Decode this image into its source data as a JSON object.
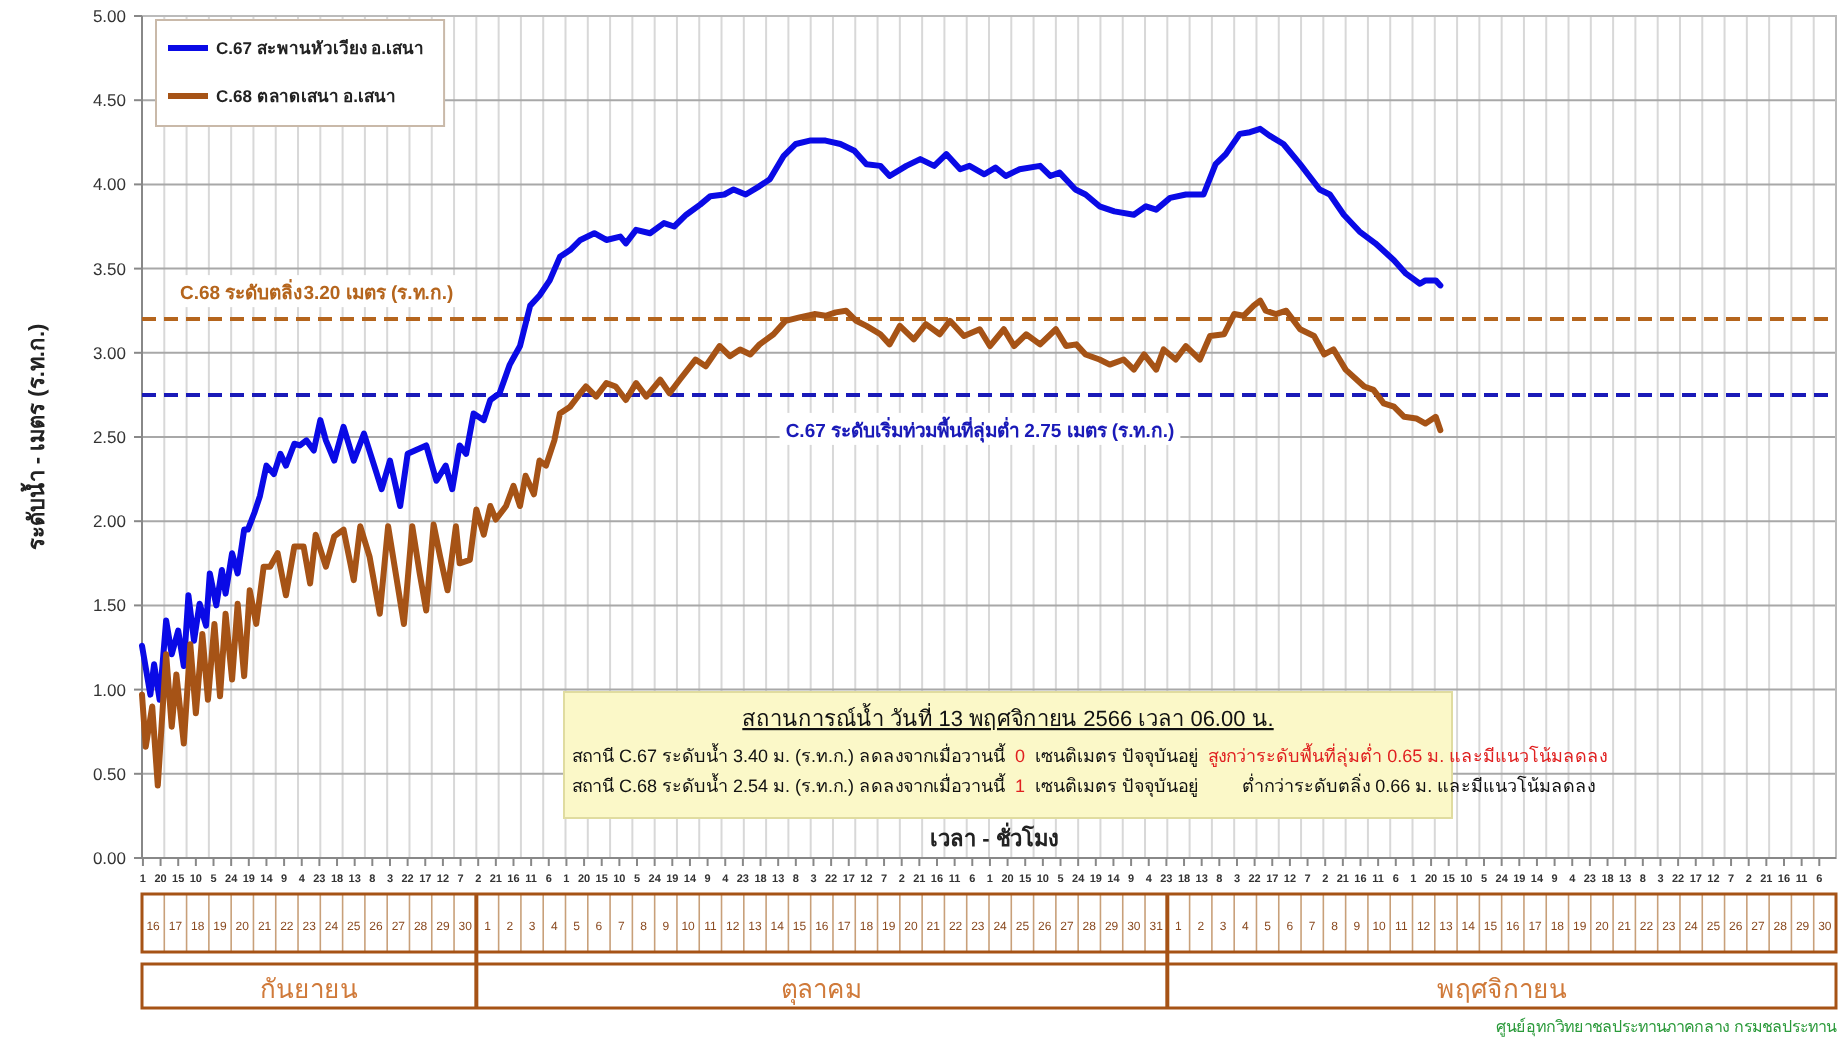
{
  "chart_data": {
    "type": "line",
    "ylabel": "ระดับน้ำ - เมตร (ร.ท.ก.)",
    "xlabel": "เวลา - ชั่วโมง",
    "legend": "top left",
    "grid": true,
    "xlim": [
      "--09-16T00:00",
      "--12-01T00:00"
    ],
    "ylim": [
      0,
      5
    ],
    "yticks": [
      {
        "value": 0,
        "label": "0.00"
      },
      {
        "value": 0.5,
        "label": "0.50"
      },
      {
        "value": 1,
        "label": "1.00"
      },
      {
        "value": 1.5,
        "label": "1.50"
      },
      {
        "value": 2,
        "label": "2.00"
      },
      {
        "value": 2.5,
        "label": "2.50"
      },
      {
        "value": 3,
        "label": "3.00"
      },
      {
        "value": 3.5,
        "label": "3.50"
      },
      {
        "value": 4,
        "label": "4.00"
      },
      {
        "value": 4.5,
        "label": "4.50"
      },
      {
        "value": 5,
        "label": "5.00"
      }
    ],
    "xticks": [
      {
        "value": "--09-16T01:00",
        "label": "1"
      },
      {
        "value": "--09-16T20:00",
        "label": "20"
      },
      {
        "value": "--09-17T15:00",
        "label": "15"
      },
      {
        "value": "--09-18T10:00",
        "label": "10"
      },
      {
        "value": "--09-19T05:00",
        "label": "5"
      },
      {
        "value": "--09-20T00:00",
        "label": "24"
      },
      {
        "value": "--09-20T19:00",
        "label": "19"
      },
      {
        "value": "--09-21T14:00",
        "label": "14"
      },
      {
        "value": "--09-22T09:00",
        "label": "9"
      },
      {
        "value": "--09-23T04:00",
        "label": "4"
      },
      {
        "value": "--09-23T23:00",
        "label": "23"
      },
      {
        "value": "--09-24T18:00",
        "label": "18"
      },
      {
        "value": "--09-25T13:00",
        "label": "13"
      },
      {
        "value": "--09-26T08:00",
        "label": "8"
      },
      {
        "value": "--09-27T03:00",
        "label": "3"
      },
      {
        "value": "--09-27T22:00",
        "label": "22"
      },
      {
        "value": "--09-28T17:00",
        "label": "17"
      },
      {
        "value": "--09-29T12:00",
        "label": "12"
      },
      {
        "value": "--09-30T07:00",
        "label": "7"
      },
      {
        "value": "--10-01T02:00",
        "label": "2"
      },
      {
        "value": "--10-01T21:00",
        "label": "21"
      },
      {
        "value": "--10-02T16:00",
        "label": "16"
      },
      {
        "value": "--10-03T11:00",
        "label": "11"
      },
      {
        "value": "--10-04T06:00",
        "label": "6"
      },
      {
        "value": "--10-05T01:00",
        "label": "1"
      },
      {
        "value": "--10-05T20:00",
        "label": "20"
      },
      {
        "value": "--10-06T15:00",
        "label": "15"
      },
      {
        "value": "--10-07T10:00",
        "label": "10"
      },
      {
        "value": "--10-08T05:00",
        "label": "5"
      },
      {
        "value": "--10-09T00:00",
        "label": "24"
      },
      {
        "value": "--10-09T19:00",
        "label": "19"
      },
      {
        "value": "--10-10T14:00",
        "label": "14"
      },
      {
        "value": "--10-11T09:00",
        "label": "9"
      },
      {
        "value": "--10-12T04:00",
        "label": "4"
      },
      {
        "value": "--10-12T23:00",
        "label": "23"
      },
      {
        "value": "--10-13T18:00",
        "label": "18"
      },
      {
        "value": "--10-14T13:00",
        "label": "13"
      },
      {
        "value": "--10-15T08:00",
        "label": "8"
      },
      {
        "value": "--10-16T03:00",
        "label": "3"
      },
      {
        "value": "--10-16T22:00",
        "label": "22"
      },
      {
        "value": "--10-17T17:00",
        "label": "17"
      },
      {
        "value": "--10-18T12:00",
        "label": "12"
      },
      {
        "value": "--10-19T07:00",
        "label": "7"
      },
      {
        "value": "--10-20T02:00",
        "label": "2"
      },
      {
        "value": "--10-20T21:00",
        "label": "21"
      },
      {
        "value": "--10-21T16:00",
        "label": "16"
      },
      {
        "value": "--10-22T11:00",
        "label": "11"
      },
      {
        "value": "--10-23T06:00",
        "label": "6"
      },
      {
        "value": "--10-24T01:00",
        "label": "1"
      },
      {
        "value": "--10-24T20:00",
        "label": "20"
      },
      {
        "value": "--10-25T15:00",
        "label": "15"
      },
      {
        "value": "--10-26T10:00",
        "label": "10"
      },
      {
        "value": "--10-27T05:00",
        "label": "5"
      },
      {
        "value": "--10-28T00:00",
        "label": "24"
      },
      {
        "value": "--10-28T19:00",
        "label": "19"
      },
      {
        "value": "--10-29T14:00",
        "label": "14"
      },
      {
        "value": "--10-30T09:00",
        "label": "9"
      },
      {
        "value": "--10-31T04:00",
        "label": "4"
      },
      {
        "value": "--10-31T23:00",
        "label": "23"
      },
      {
        "value": "--11-01T18:00",
        "label": "18"
      },
      {
        "value": "--11-02T13:00",
        "label": "13"
      },
      {
        "value": "--11-03T08:00",
        "label": "8"
      },
      {
        "value": "--11-04T03:00",
        "label": "3"
      },
      {
        "value": "--11-04T22:00",
        "label": "22"
      },
      {
        "value": "--11-05T17:00",
        "label": "17"
      },
      {
        "value": "--11-06T12:00",
        "label": "12"
      },
      {
        "value": "--11-07T07:00",
        "label": "7"
      },
      {
        "value": "--11-08T02:00",
        "label": "2"
      },
      {
        "value": "--11-08T21:00",
        "label": "21"
      },
      {
        "value": "--11-09T16:00",
        "label": "16"
      },
      {
        "value": "--11-10T11:00",
        "label": "11"
      },
      {
        "value": "--11-11T06:00",
        "label": "6"
      },
      {
        "value": "--11-12T01:00",
        "label": "1"
      },
      {
        "value": "--11-12T20:00",
        "label": "20"
      },
      {
        "value": "--11-13T15:00",
        "label": "15"
      },
      {
        "value": "--11-14T10:00",
        "label": "10"
      },
      {
        "value": "--11-15T05:00",
        "label": "5"
      },
      {
        "value": "--11-16T00:00",
        "label": "24"
      },
      {
        "value": "--11-16T19:00",
        "label": "19"
      },
      {
        "value": "--11-17T14:00",
        "label": "14"
      },
      {
        "value": "--11-18T09:00",
        "label": "9"
      },
      {
        "value": "--11-19T04:00",
        "label": "4"
      },
      {
        "value": "--11-19T23:00",
        "label": "23"
      },
      {
        "value": "--11-20T18:00",
        "label": "18"
      },
      {
        "value": "--11-21T13:00",
        "label": "13"
      },
      {
        "value": "--11-22T08:00",
        "label": "8"
      },
      {
        "value": "--11-23T03:00",
        "label": "3"
      },
      {
        "value": "--11-23T22:00",
        "label": "22"
      },
      {
        "value": "--11-24T17:00",
        "label": "17"
      },
      {
        "value": "--11-25T12:00",
        "label": "12"
      },
      {
        "value": "--11-26T07:00",
        "label": "7"
      },
      {
        "value": "--11-27T02:00",
        "label": "2"
      },
      {
        "value": "--11-27T21:00",
        "label": "21"
      },
      {
        "value": "--11-28T16:00",
        "label": "16"
      },
      {
        "value": "--11-29T11:00",
        "label": "11"
      },
      {
        "value": "--11-30T06:00",
        "label": "6"
      }
    ],
    "x2lim": [
      "--09-16T00:00",
      "--12-01T00:00"
    ],
    "x2ticks": [
      {
        "value": "--09-16T12:00",
        "label": "16"
      },
      {
        "value": "--09-17T12:00",
        "label": "17"
      },
      {
        "value": "--09-18T12:00",
        "label": "18"
      },
      {
        "value": "--09-19T12:00",
        "label": "19"
      },
      {
        "value": "--09-20T12:00",
        "label": "20"
      },
      {
        "value": "--09-21T12:00",
        "label": "21"
      },
      {
        "value": "--09-22T12:00",
        "label": "22"
      },
      {
        "value": "--09-23T12:00",
        "label": "23"
      },
      {
        "value": "--09-24T12:00",
        "label": "24"
      },
      {
        "value": "--09-25T12:00",
        "label": "25"
      },
      {
        "value": "--09-26T12:00",
        "label": "26"
      },
      {
        "value": "--09-27T12:00",
        "label": "27"
      },
      {
        "value": "--09-28T12:00",
        "label": "28"
      },
      {
        "value": "--09-29T12:00",
        "label": "29"
      },
      {
        "value": "--09-30T12:00",
        "label": "30"
      },
      {
        "value": "--10-01T12:00",
        "label": "1"
      },
      {
        "value": "--10-02T12:00",
        "label": "2"
      },
      {
        "value": "--10-03T12:00",
        "label": "3"
      },
      {
        "value": "--10-04T12:00",
        "label": "4"
      },
      {
        "value": "--10-05T12:00",
        "label": "5"
      },
      {
        "value": "--10-06T12:00",
        "label": "6"
      },
      {
        "value": "--10-07T12:00",
        "label": "7"
      },
      {
        "value": "--10-08T12:00",
        "label": "8"
      },
      {
        "value": "--10-09T12:00",
        "label": "9"
      },
      {
        "value": "--10-10T12:00",
        "label": "10"
      },
      {
        "value": "--10-11T12:00",
        "label": "11"
      },
      {
        "value": "--10-12T12:00",
        "label": "12"
      },
      {
        "value": "--10-13T12:00",
        "label": "13"
      },
      {
        "value": "--10-14T12:00",
        "label": "14"
      },
      {
        "value": "--10-15T12:00",
        "label": "15"
      },
      {
        "value": "--10-16T12:00",
        "label": "16"
      },
      {
        "value": "--10-17T12:00",
        "label": "17"
      },
      {
        "value": "--10-18T12:00",
        "label": "18"
      },
      {
        "value": "--10-19T12:00",
        "label": "19"
      },
      {
        "value": "--10-20T12:00",
        "label": "20"
      },
      {
        "value": "--10-21T12:00",
        "label": "21"
      },
      {
        "value": "--10-22T12:00",
        "label": "22"
      },
      {
        "value": "--10-23T12:00",
        "label": "23"
      },
      {
        "value": "--10-24T12:00",
        "label": "24"
      },
      {
        "value": "--10-25T12:00",
        "label": "25"
      },
      {
        "value": "--10-26T12:00",
        "label": "26"
      },
      {
        "value": "--10-27T12:00",
        "label": "27"
      },
      {
        "value": "--10-28T12:00",
        "label": "28"
      },
      {
        "value": "--10-29T12:00",
        "label": "29"
      },
      {
        "value": "--10-30T12:00",
        "label": "30"
      },
      {
        "value": "--10-31T12:00",
        "label": "31"
      },
      {
        "value": "--11-01T12:00",
        "label": "1"
      },
      {
        "value": "--11-02T12:00",
        "label": "2"
      },
      {
        "value": "--11-03T12:00",
        "label": "3"
      },
      {
        "value": "--11-04T12:00",
        "label": "4"
      },
      {
        "value": "--11-05T12:00",
        "label": "5"
      },
      {
        "value": "--11-06T12:00",
        "label": "6"
      },
      {
        "value": "--11-07T12:00",
        "label": "7"
      },
      {
        "value": "--11-08T12:00",
        "label": "8"
      },
      {
        "value": "--11-09T12:00",
        "label": "9"
      },
      {
        "value": "--11-10T12:00",
        "label": "10"
      },
      {
        "value": "--11-11T12:00",
        "label": "11"
      },
      {
        "value": "--11-12T12:00",
        "label": "12"
      },
      {
        "value": "--11-13T12:00",
        "label": "13"
      },
      {
        "value": "--11-14T12:00",
        "label": "14"
      },
      {
        "value": "--11-15T12:00",
        "label": "15"
      },
      {
        "value": "--11-16T12:00",
        "label": "16"
      },
      {
        "value": "--11-17T12:00",
        "label": "17"
      },
      {
        "value": "--11-18T12:00",
        "label": "18"
      },
      {
        "value": "--11-19T12:00",
        "label": "19"
      },
      {
        "value": "--11-20T12:00",
        "label": "20"
      },
      {
        "value": "--11-21T12:00",
        "label": "21"
      },
      {
        "value": "--11-22T12:00",
        "label": "22"
      },
      {
        "value": "--11-23T12:00",
        "label": "23"
      },
      {
        "value": "--11-24T12:00",
        "label": "24"
      },
      {
        "value": "--11-25T12:00",
        "label": "25"
      },
      {
        "value": "--11-26T12:00",
        "label": "26"
      },
      {
        "value": "--11-27T12:00",
        "label": "27"
      },
      {
        "value": "--11-28T12:00",
        "label": "28"
      },
      {
        "value": "--11-29T12:00",
        "label": "29"
      },
      {
        "value": "--11-30T12:00",
        "label": "30"
      }
    ],
    "ref_lines": [
      {
        "axis": "y",
        "value": 3.2,
        "label": "C.68 ระดับตลิ่ง3.20 เมตร (ร.ท.ก.)",
        "color": "#b5651d",
        "line_style": "dashed"
      },
      {
        "axis": "y",
        "value": 2.75,
        "label": "C.67 ระดับเริ่มท่วมพื้นที่ลุ่มต่ำ 2.75 เมตร (ร.ท.ก.)",
        "color": "#1a1ab8",
        "line_style": "dashed"
      }
    ],
    "annotations": [
      "สถานการณ์น้ำ วันที่ 13 พฤศจิกายน 2566 เวลา 06.00 น.",
      "สถานี C.67 ระดับน้ำ 3.40 ม. (ร.ท.ก.) ลดลงจากเมื่อวานนี้",
      "0",
      "เซนติเมตร ปัจจุบันอยู่",
      "สูงกว่าระดับพื้นที่ลุ่มต่ำ 0.65 ม. และมีแนวโน้มลดลง",
      "สถานี C.68 ระดับน้ำ 2.54 ม. (ร.ท.ก.) ลดลงจากเมื่อวานนี้",
      "1",
      "เซนติเมตร ปัจจุบันอยู่",
      "ต่ำกว่าระดับตลิ่ง   0.66 ม. และมีแนวโน้มลดลง",
      "ศูนย์อุทกวิทยาชลประทานภาคกลาง กรมชลประทาน",
      "กันยายน",
      "ตุลาคม",
      "พฤศจิกายน"
    ],
    "series": [
      {
        "name": "C.67 สะพานหัวเวียง อ.เสนา",
        "color": "#0a0ae6",
        "x": [
          "--09-16T00:00",
          "--09-16T09:00",
          "--09-16T13:00",
          "--09-16T19:00",
          "--09-17T02:00",
          "--09-17T08:00",
          "--09-17T15:00",
          "--09-17T21:00",
          "--09-18T02:00",
          "--09-18T08:00",
          "--09-18T14:00",
          "--09-18T21:00",
          "--09-19T01:00",
          "--09-19T08:00",
          "--09-19T14:00",
          "--09-19T18:00",
          "--09-20T01:00",
          "--09-20T07:00",
          "--09-20T14:00",
          "--09-20T18:00",
          "--09-21T01:00",
          "--09-21T07:00",
          "--09-21T14:00",
          "--09-21T22:00",
          "--09-22T05:00",
          "--09-22T11:00",
          "--09-22T20:00",
          "--09-23T02:00",
          "--09-23T09:00",
          "--09-23T17:00",
          "--09-24T00:00",
          "--09-24T06:00",
          "--09-24T15:00",
          "--09-25T01:00",
          "--09-25T12:00",
          "--09-25T23:00",
          "--09-26T10:00",
          "--09-26T18:00",
          "--09-27T03:00",
          "--09-27T14:00",
          "--09-27T22:00",
          "--09-28T18:00",
          "--09-29T05:00",
          "--09-29T15:00",
          "--09-29T22:00",
          "--09-30T06:00",
          "--09-30T13:00",
          "--09-30T21:00",
          "--10-01T08:00",
          "--10-01T15:00",
          "--10-02T01:00",
          "--10-02T12:00",
          "--10-02T23:00",
          "--10-03T10:00",
          "--10-03T20:00",
          "--10-04T07:00",
          "--10-04T18:00",
          "--10-05T05:00",
          "--10-05T16:00",
          "--10-06T07:00",
          "--10-06T20:00",
          "--10-07T11:00",
          "--10-07T17:00",
          "--10-08T04:00",
          "--10-08T19:00",
          "--10-09T10:00",
          "--10-09T21:00",
          "--10-10T10:00",
          "--10-11T01:00",
          "--10-11T12:00",
          "--10-12T03:00",
          "--10-12T13:00",
          "--10-13T02:00",
          "--10-13T17:00",
          "--10-14T04:00",
          "--10-14T19:00",
          "--10-15T08:00",
          "--10-15T23:00",
          "--10-16T16:00",
          "--10-17T08:00",
          "--10-17T23:00",
          "--10-18T12:00",
          "--10-19T03:00",
          "--10-19T13:00",
          "--10-20T07:00",
          "--10-20T22:00",
          "--10-21T13:00",
          "--10-22T02:00",
          "--10-22T17:00",
          "--10-23T03:00",
          "--10-23T19:00",
          "--10-24T07:00",
          "--10-24T18:00",
          "--10-25T09:00",
          "--10-26T07:00",
          "--10-26T18:00",
          "--10-27T04:00",
          "--10-27T21:00",
          "--10-28T08:00",
          "--10-28T23:00",
          "--10-29T15:00",
          "--10-30T12:00",
          "--10-31T01:00",
          "--10-31T12:00",
          "--11-01T03:00",
          "--11-01T20:00",
          "--11-02T15:00",
          "--11-03T04:00",
          "--11-03T15:00",
          "--11-04T06:00",
          "--11-04T17:00",
          "--11-05T04:00",
          "--11-05T14:00",
          "--11-06T05:00",
          "--11-06T23:00",
          "--11-07T20:00",
          "--11-08T07:00",
          "--11-08T22:00",
          "--11-09T15:00",
          "--11-10T08:00",
          "--11-11T04:00",
          "--11-11T17:00",
          "--11-12T08:00",
          "--11-12T14:00",
          "--11-13T01:00",
          "--11-13T06:00"
        ],
        "values": [
          1.26,
          0.97,
          1.15,
          0.94,
          1.41,
          1.21,
          1.35,
          1.14,
          1.56,
          1.29,
          1.51,
          1.38,
          1.69,
          1.5,
          1.71,
          1.57,
          1.81,
          1.69,
          1.95,
          1.95,
          2.05,
          2.15,
          2.33,
          2.28,
          2.4,
          2.33,
          2.46,
          2.45,
          2.48,
          2.42,
          2.6,
          2.48,
          2.36,
          2.56,
          2.36,
          2.52,
          2.33,
          2.19,
          2.36,
          2.09,
          2.4,
          2.45,
          2.24,
          2.33,
          2.19,
          2.45,
          2.4,
          2.64,
          2.6,
          2.72,
          2.76,
          2.93,
          3.04,
          3.28,
          3.34,
          3.43,
          3.57,
          3.61,
          3.67,
          3.71,
          3.67,
          3.69,
          3.65,
          3.73,
          3.71,
          3.77,
          3.75,
          3.82,
          3.88,
          3.93,
          3.94,
          3.97,
          3.94,
          3.99,
          4.03,
          4.17,
          4.24,
          4.26,
          4.26,
          4.24,
          4.2,
          4.12,
          4.11,
          4.05,
          4.11,
          4.15,
          4.11,
          4.18,
          4.09,
          4.11,
          4.06,
          4.1,
          4.05,
          4.09,
          4.11,
          4.05,
          4.07,
          3.97,
          3.94,
          3.87,
          3.84,
          3.82,
          3.87,
          3.85,
          3.92,
          3.94,
          3.94,
          4.12,
          4.18,
          4.3,
          4.31,
          4.33,
          4.29,
          4.24,
          4.12,
          3.97,
          3.94,
          3.82,
          3.72,
          3.65,
          3.55,
          3.47,
          3.41,
          3.43,
          3.43,
          3.4
        ]
      },
      {
        "name": "C.68 ตลาดเสนา อ.เสนา",
        "color": "#a65316",
        "x": [
          "--09-16T00:00",
          "--09-16T04:00",
          "--09-16T11:00",
          "--09-16T17:00",
          "--09-17T02:00",
          "--09-17T08:00",
          "--09-17T13:00",
          "--09-17T21:00",
          "--09-18T04:00",
          "--09-18T10:00",
          "--09-18T17:00",
          "--09-18T23:00",
          "--09-19T06:00",
          "--09-19T12:00",
          "--09-19T18:00",
          "--09-20T01:00",
          "--09-20T07:00",
          "--09-20T14:00",
          "--09-20T20:00",
          "--09-21T03:00",
          "--09-21T11:00",
          "--09-21T18:00",
          "--09-22T02:00",
          "--09-22T11:00",
          "--09-22T20:00",
          "--09-23T06:00",
          "--09-23T13:00",
          "--09-23T19:00",
          "--09-24T06:00",
          "--09-24T15:00",
          "--09-25T01:00",
          "--09-25T12:00",
          "--09-25T19:00",
          "--09-26T05:00",
          "--09-26T16:00",
          "--09-27T01:00",
          "--09-27T18:00",
          "--09-28T03:00",
          "--09-28T11:00",
          "--09-28T18:00",
          "--09-29T02:00",
          "--09-29T09:00",
          "--09-29T17:00",
          "--09-30T02:00",
          "--09-30T06:00",
          "--09-30T17:00",
          "--10-01T00:00",
          "--10-01T08:00",
          "--10-01T15:00",
          "--10-01T21:00",
          "--10-02T08:00",
          "--10-02T16:00",
          "--10-02T23:00",
          "--10-03T05:00",
          "--10-03T14:00",
          "--10-03T20:00",
          "--10-04T03:00",
          "--10-04T12:00",
          "--10-04T18:00",
          "--10-05T05:00",
          "--10-05T16:00",
          "--10-05T22:00",
          "--10-06T09:00",
          "--10-06T20:00",
          "--10-07T06:00",
          "--10-07T17:00",
          "--10-08T04:00",
          "--10-08T15:00",
          "--10-09T06:00",
          "--10-09T16:00",
          "--10-10T03:00",
          "--10-10T20:00",
          "--10-11T07:00",
          "--10-11T22:00",
          "--10-12T09:00",
          "--10-12T20:00",
          "--10-13T07:00",
          "--10-13T17:00",
          "--10-14T08:00",
          "--10-14T21:00",
          "--10-15T12:00",
          "--10-16T04:00",
          "--10-16T16:00",
          "--10-17T03:00",
          "--10-17T14:00",
          "--10-18T01:00",
          "--10-18T12:00",
          "--10-19T03:00",
          "--10-19T13:00",
          "--10-20T00:00",
          "--10-20T15:00",
          "--10-21T04:00",
          "--10-21T19:00",
          "--10-22T06:00",
          "--10-22T21:00",
          "--10-23T14:00",
          "--10-24T01:00",
          "--10-24T16:00",
          "--10-25T03:00",
          "--10-25T16:00",
          "--10-26T07:00",
          "--10-27T00:00",
          "--10-27T11:00",
          "--10-27T22:00",
          "--10-28T08:00",
          "--10-28T23:00",
          "--10-29T10:00",
          "--10-30T01:00",
          "--10-30T12:00",
          "--10-30T23:00",
          "--10-31T12:00",
          "--10-31T20:00",
          "--11-01T09:00",
          "--11-01T20:00",
          "--11-02T11:00",
          "--11-02T22:00",
          "--11-03T13:00",
          "--11-04T00:00",
          "--11-04T10:00",
          "--11-04T21:00",
          "--11-05T04:00",
          "--11-05T10:00",
          "--11-05T21:00",
          "--11-06T08:00",
          "--11-06T23:00",
          "--11-07T14:00",
          "--11-08T01:00",
          "--11-08T11:00",
          "--11-09T00:00",
          "--11-09T20:00",
          "--11-10T06:00",
          "--11-10T17:00",
          "--11-11T04:00",
          "--11-11T15:00",
          "--11-12T04:00",
          "--11-12T14:00",
          "--11-13T01:00",
          "--11-13T06:00"
        ],
        "values": [
          0.97,
          0.66,
          0.9,
          0.43,
          1.21,
          0.78,
          1.09,
          0.68,
          1.27,
          0.86,
          1.33,
          0.94,
          1.39,
          0.96,
          1.45,
          1.06,
          1.51,
          1.08,
          1.59,
          1.39,
          1.73,
          1.73,
          1.81,
          1.56,
          1.85,
          1.85,
          1.63,
          1.92,
          1.73,
          1.91,
          1.95,
          1.65,
          1.97,
          1.79,
          1.45,
          1.97,
          1.39,
          1.97,
          1.69,
          1.47,
          1.98,
          1.79,
          1.59,
          1.97,
          1.75,
          1.77,
          2.07,
          1.92,
          2.09,
          2.01,
          2.09,
          2.21,
          2.09,
          2.27,
          2.16,
          2.36,
          2.33,
          2.48,
          2.64,
          2.68,
          2.76,
          2.8,
          2.74,
          2.82,
          2.8,
          2.72,
          2.82,
          2.74,
          2.84,
          2.76,
          2.84,
          2.96,
          2.92,
          3.04,
          2.98,
          3.02,
          2.99,
          3.05,
          3.11,
          3.19,
          3.21,
          3.23,
          3.22,
          3.24,
          3.25,
          3.19,
          3.16,
          3.11,
          3.05,
          3.16,
          3.08,
          3.17,
          3.11,
          3.19,
          3.1,
          3.14,
          3.04,
          3.14,
          3.04,
          3.11,
          3.05,
          3.14,
          3.04,
          3.05,
          2.99,
          2.96,
          2.93,
          2.96,
          2.9,
          2.99,
          2.9,
          3.02,
          2.96,
          3.04,
          2.96,
          3.1,
          3.11,
          3.23,
          3.22,
          3.28,
          3.31,
          3.25,
          3.23,
          3.25,
          3.14,
          3.1,
          2.99,
          3.02,
          2.9,
          2.8,
          2.78,
          2.7,
          2.68,
          2.62,
          2.61,
          2.58,
          2.62,
          2.54
        ]
      }
    ]
  }
}
